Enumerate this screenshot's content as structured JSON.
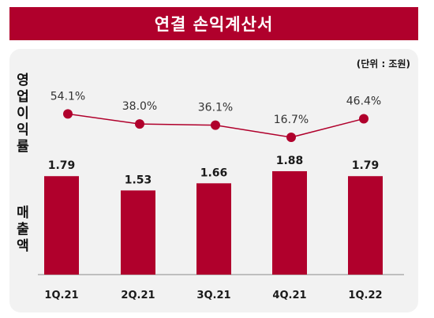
{
  "title": "연결 손익계산서",
  "unit_label": "(단위 : 조원)",
  "margin_axis_label": "영\n업\n이\n익\n률",
  "revenue_axis_label": "매\n출\n액",
  "colors": {
    "accent": "#b0002c",
    "bar": "#b0002c",
    "line": "#b0002c",
    "panel": "#f2f2f2"
  },
  "chart_data": [
    {
      "type": "bar",
      "categories": [
        "1Q.21",
        "2Q.21",
        "3Q.21",
        "4Q.21",
        "1Q.22"
      ],
      "series": [
        {
          "values": [
            1.79,
            1.53,
            1.66,
            1.88,
            1.79
          ]
        }
      ],
      "value_labels": [
        "1.79",
        "1.53",
        "1.66",
        "1.88",
        "1.79"
      ],
      "ylabel": "매출액",
      "ylim": [
        0,
        2.1
      ]
    },
    {
      "type": "line",
      "categories": [
        "1Q.21",
        "2Q.21",
        "3Q.21",
        "4Q.21",
        "1Q.22"
      ],
      "series": [
        {
          "values": [
            54.1,
            38.0,
            36.1,
            16.7,
            46.4
          ]
        }
      ],
      "value_labels": [
        "54.1%",
        "38.0%",
        "36.1%",
        "16.7%",
        "46.4%"
      ],
      "ylabel": "영업이익률",
      "ylim": [
        0,
        100
      ]
    }
  ]
}
